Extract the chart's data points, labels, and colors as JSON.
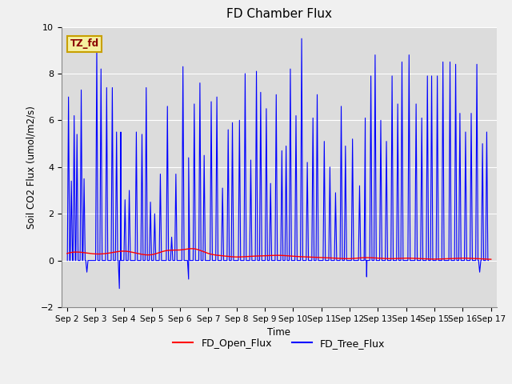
{
  "title": "FD Chamber Flux",
  "ylabel": "Soil CO2 Flux (umol/m2/s)",
  "xlabel": "Time",
  "ylim": [
    -2,
    10
  ],
  "annotation_text": "TZ_fd",
  "legend_labels": [
    "FD_Open_Flux",
    "FD_Tree_Flux"
  ],
  "open_flux_color": "#ff0000",
  "tree_flux_color": "#0000ff",
  "background_color": "#dcdcdc",
  "fig_facecolor": "#f0f0f0",
  "xtick_labels": [
    "Sep 2",
    "Sep 3",
    "Sep 4",
    "Sep 5",
    "Sep 6",
    "Sep 7",
    "Sep 8",
    "Sep 9",
    "Sep 10",
    "Sep 11",
    "Sep 12",
    "Sep 13",
    "Sep 14",
    "Sep 15",
    "Sep 16",
    "Sep 17"
  ],
  "spike_positions": [
    0.05,
    0.15,
    0.25,
    0.35,
    0.5,
    0.6,
    1.05,
    1.2,
    1.4,
    1.6,
    1.75,
    1.9,
    2.05,
    2.2,
    2.45,
    2.65,
    2.8,
    2.95,
    3.1,
    3.3,
    3.55,
    3.7,
    3.85,
    4.1,
    4.3,
    4.5,
    4.7,
    4.85,
    5.1,
    5.3,
    5.5,
    5.7,
    5.85,
    6.1,
    6.3,
    6.5,
    6.7,
    6.85,
    7.05,
    7.2,
    7.4,
    7.6,
    7.75,
    7.9,
    8.1,
    8.3,
    8.5,
    8.7,
    8.85,
    9.1,
    9.3,
    9.5,
    9.7,
    9.85,
    10.1,
    10.35,
    10.55,
    10.75,
    10.9,
    11.1,
    11.3,
    11.5,
    11.7,
    11.85,
    12.1,
    12.35,
    12.55,
    12.75,
    12.9,
    13.1,
    13.3,
    13.55,
    13.75,
    13.9,
    14.1,
    14.3,
    14.5,
    14.7,
    14.85
  ],
  "spike_heights": [
    7.0,
    3.4,
    6.2,
    5.4,
    7.3,
    3.5,
    9.1,
    8.2,
    7.4,
    7.4,
    5.5,
    5.5,
    2.6,
    3.0,
    5.5,
    5.4,
    7.4,
    2.5,
    2.0,
    3.7,
    6.6,
    1.0,
    3.7,
    8.3,
    4.4,
    6.7,
    7.6,
    4.5,
    6.8,
    7.0,
    3.1,
    5.6,
    5.9,
    6.0,
    8.0,
    4.3,
    8.1,
    7.2,
    6.5,
    3.3,
    7.1,
    4.7,
    4.9,
    8.2,
    6.2,
    9.5,
    4.2,
    6.1,
    7.1,
    5.1,
    4.0,
    2.9,
    6.6,
    4.9,
    5.2,
    3.2,
    6.1,
    7.9,
    8.8,
    6.0,
    5.1,
    7.9,
    6.7,
    8.5,
    8.8,
    6.7,
    6.1,
    7.9,
    7.9,
    7.9,
    8.5,
    8.5,
    8.4,
    6.3,
    5.5,
    6.3,
    8.4,
    5.0,
    5.5
  ],
  "neg_spike_positions": [
    0.7,
    1.85,
    4.3,
    10.6,
    14.6
  ],
  "neg_spike_heights": [
    -0.5,
    -1.2,
    -0.8,
    -0.7,
    -0.5
  ],
  "n_days": 15,
  "open_x": [
    0.0,
    0.5,
    1.0,
    1.5,
    2.0,
    2.5,
    3.0,
    3.5,
    4.0,
    4.5,
    5.0,
    5.5,
    6.0,
    6.5,
    7.0,
    7.5,
    8.0,
    8.5,
    9.0,
    9.5,
    10.0,
    10.5,
    11.0,
    11.5,
    12.0,
    12.5,
    13.0,
    13.5,
    14.0,
    14.5,
    15.0
  ],
  "open_y": [
    0.3,
    0.35,
    0.28,
    0.32,
    0.4,
    0.3,
    0.25,
    0.42,
    0.45,
    0.5,
    0.3,
    0.2,
    0.15,
    0.18,
    0.2,
    0.22,
    0.18,
    0.15,
    0.12,
    0.1,
    0.08,
    0.12,
    0.1,
    0.08,
    0.1,
    0.08,
    0.06,
    0.08,
    0.1,
    0.08,
    0.05
  ]
}
